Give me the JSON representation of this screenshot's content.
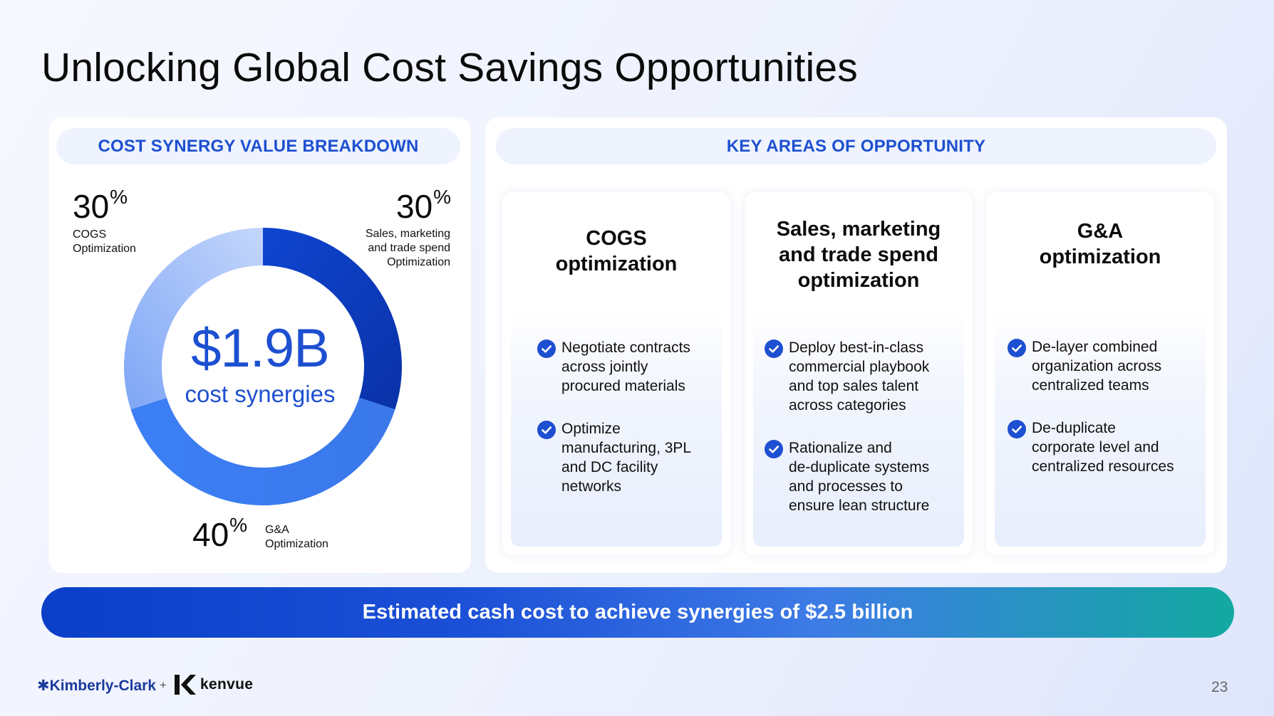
{
  "title": "Unlocking Global Cost Savings Opportunities",
  "left_panel": {
    "header": "COST SYNERGY VALUE BREAKDOWN",
    "center_value": "$1.9B",
    "center_label": "cost synergies",
    "segments": [
      {
        "value": "30",
        "unit": "%",
        "label_lines": [
          "COGS",
          "Optimization"
        ],
        "fraction": 0.3,
        "color": "#8fb3f7"
      },
      {
        "value": "30",
        "unit": "%",
        "label_lines": [
          "Sales, marketing",
          "and trade spend",
          "Optimization"
        ],
        "fraction": 0.3,
        "color": "#0f3fc2"
      },
      {
        "value": "40",
        "unit": "%",
        "label_lines": [
          "G&A",
          "Optimization"
        ],
        "fraction": 0.4,
        "color": "#3f82f4"
      }
    ]
  },
  "right_panel": {
    "header": "KEY AREAS OF OPPORTUNITY",
    "cards": [
      {
        "title_lines": [
          "COGS",
          "optimization"
        ],
        "bullets": [
          [
            "Negotiate contracts",
            "across jointly",
            "procured materials"
          ],
          [
            "Optimize",
            "manufacturing, 3PL",
            "and DC facility",
            "networks"
          ]
        ]
      },
      {
        "title_lines": [
          "Sales, marketing",
          "and trade spend",
          "optimization"
        ],
        "bullets": [
          [
            "Deploy best-in-class",
            "commercial playbook",
            "and top sales talent",
            "across categories"
          ],
          [
            "Rationalize and",
            "de-duplicate systems",
            "and processes to",
            "ensure lean structure"
          ]
        ]
      },
      {
        "title_lines": [
          "G&A",
          "optimization"
        ],
        "bullets": [
          [
            "De-layer combined",
            "organization across",
            "centralized teams"
          ],
          [
            "De-duplicate",
            "corporate level and",
            "centralized resources"
          ]
        ]
      }
    ]
  },
  "banner": "Estimated cash cost to achieve synergies of $2.5 billion",
  "footer": {
    "logo_kc": "✱Kimberly-Clark",
    "plus": "+",
    "logo_kenvue": "kenvue",
    "page_number": "23"
  },
  "icons": {
    "check": "check-circle-icon",
    "check_color": "#1d4fd1"
  }
}
